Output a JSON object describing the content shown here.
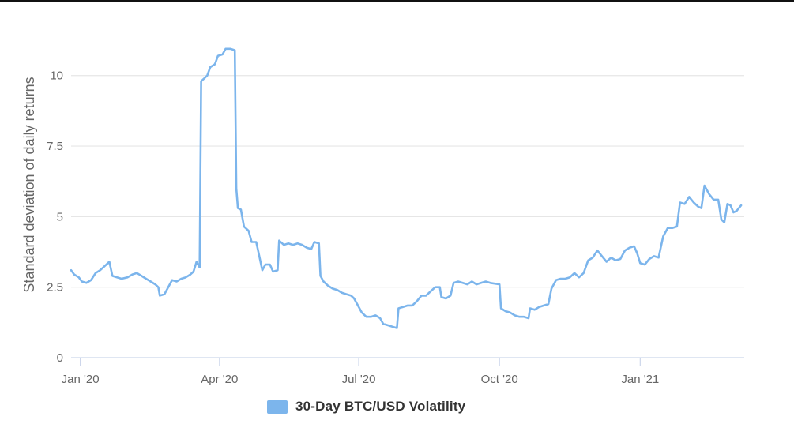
{
  "colors": {
    "series": "#7cb5ec",
    "grid": "#e6e6e6",
    "text": "#666666",
    "legend_text": "#333333"
  },
  "chart_data": {
    "type": "line",
    "title": "",
    "xlabel": "",
    "ylabel": "Standard deviation of daily returns",
    "ylim": [
      0,
      11
    ],
    "xlim": [
      "2019-12-26",
      "2021-03-10"
    ],
    "y_ticks": [
      0,
      2.5,
      5,
      7.5,
      10
    ],
    "y_tick_labels": [
      "0",
      "2.5",
      "5",
      "7.5",
      "10"
    ],
    "x_ticks": [
      "2020-01-01",
      "2020-04-01",
      "2020-07-01",
      "2020-10-01",
      "2021-01-01"
    ],
    "x_tick_labels": [
      "Jan '20",
      "Apr '20",
      "Jul '20",
      "Oct '20",
      "Jan '21"
    ],
    "grid": "horizontal",
    "legend_position": "bottom-center",
    "series": [
      {
        "name": "30-Day BTC/USD Volatility",
        "color": "#7cb5ec",
        "points": [
          [
            "2019-12-26",
            3.1
          ],
          [
            "2019-12-28",
            2.95
          ],
          [
            "2019-12-31",
            2.85
          ],
          [
            "2020-01-02",
            2.7
          ],
          [
            "2020-01-05",
            2.65
          ],
          [
            "2020-01-08",
            2.75
          ],
          [
            "2020-01-11",
            3.0
          ],
          [
            "2020-01-14",
            3.1
          ],
          [
            "2020-01-17",
            3.25
          ],
          [
            "2020-01-20",
            3.4
          ],
          [
            "2020-01-22",
            2.9
          ],
          [
            "2020-01-25",
            2.85
          ],
          [
            "2020-01-28",
            2.8
          ],
          [
            "2020-02-01",
            2.85
          ],
          [
            "2020-02-04",
            2.95
          ],
          [
            "2020-02-07",
            3.0
          ],
          [
            "2020-02-10",
            2.9
          ],
          [
            "2020-02-13",
            2.8
          ],
          [
            "2020-02-16",
            2.7
          ],
          [
            "2020-02-19",
            2.6
          ],
          [
            "2020-02-21",
            2.5
          ],
          [
            "2020-02-22",
            2.2
          ],
          [
            "2020-02-25",
            2.25
          ],
          [
            "2020-02-27",
            2.45
          ],
          [
            "2020-03-01",
            2.75
          ],
          [
            "2020-03-04",
            2.7
          ],
          [
            "2020-03-07",
            2.8
          ],
          [
            "2020-03-10",
            2.85
          ],
          [
            "2020-03-13",
            2.95
          ],
          [
            "2020-03-15",
            3.05
          ],
          [
            "2020-03-17",
            3.4
          ],
          [
            "2020-03-19",
            3.2
          ],
          [
            "2020-03-20",
            9.8
          ],
          [
            "2020-03-22",
            9.9
          ],
          [
            "2020-03-24",
            10.0
          ],
          [
            "2020-03-26",
            10.3
          ],
          [
            "2020-03-29",
            10.4
          ],
          [
            "2020-03-31",
            10.7
          ],
          [
            "2020-04-03",
            10.75
          ],
          [
            "2020-04-05",
            10.95
          ],
          [
            "2020-04-08",
            10.95
          ],
          [
            "2020-04-11",
            10.9
          ],
          [
            "2020-04-12",
            6.0
          ],
          [
            "2020-04-13",
            5.3
          ],
          [
            "2020-04-15",
            5.25
          ],
          [
            "2020-04-17",
            4.65
          ],
          [
            "2020-04-20",
            4.5
          ],
          [
            "2020-04-22",
            4.1
          ],
          [
            "2020-04-25",
            4.1
          ],
          [
            "2020-04-27",
            3.6
          ],
          [
            "2020-04-29",
            3.1
          ],
          [
            "2020-05-01",
            3.3
          ],
          [
            "2020-05-04",
            3.3
          ],
          [
            "2020-05-06",
            3.05
          ],
          [
            "2020-05-09",
            3.1
          ],
          [
            "2020-05-10",
            4.15
          ],
          [
            "2020-05-13",
            4.0
          ],
          [
            "2020-05-16",
            4.05
          ],
          [
            "2020-05-19",
            4.0
          ],
          [
            "2020-05-22",
            4.05
          ],
          [
            "2020-05-25",
            4.0
          ],
          [
            "2020-05-28",
            3.9
          ],
          [
            "2020-05-31",
            3.85
          ],
          [
            "2020-06-02",
            4.1
          ],
          [
            "2020-06-05",
            4.05
          ],
          [
            "2020-06-06",
            2.9
          ],
          [
            "2020-06-08",
            2.7
          ],
          [
            "2020-06-11",
            2.55
          ],
          [
            "2020-06-14",
            2.45
          ],
          [
            "2020-06-17",
            2.4
          ],
          [
            "2020-06-20",
            2.3
          ],
          [
            "2020-06-23",
            2.25
          ],
          [
            "2020-06-26",
            2.2
          ],
          [
            "2020-06-28",
            2.1
          ],
          [
            "2020-07-03",
            1.6
          ],
          [
            "2020-07-06",
            1.45
          ],
          [
            "2020-07-09",
            1.45
          ],
          [
            "2020-07-12",
            1.5
          ],
          [
            "2020-07-15",
            1.4
          ],
          [
            "2020-07-17",
            1.2
          ],
          [
            "2020-07-20",
            1.15
          ],
          [
            "2020-07-23",
            1.1
          ],
          [
            "2020-07-26",
            1.05
          ],
          [
            "2020-07-27",
            1.75
          ],
          [
            "2020-07-30",
            1.8
          ],
          [
            "2020-08-02",
            1.85
          ],
          [
            "2020-08-05",
            1.85
          ],
          [
            "2020-08-08",
            2.0
          ],
          [
            "2020-08-11",
            2.2
          ],
          [
            "2020-08-14",
            2.2
          ],
          [
            "2020-08-17",
            2.35
          ],
          [
            "2020-08-20",
            2.5
          ],
          [
            "2020-08-23",
            2.5
          ],
          [
            "2020-08-24",
            2.15
          ],
          [
            "2020-08-27",
            2.1
          ],
          [
            "2020-08-30",
            2.2
          ],
          [
            "2020-09-01",
            2.65
          ],
          [
            "2020-09-04",
            2.7
          ],
          [
            "2020-09-07",
            2.65
          ],
          [
            "2020-09-10",
            2.6
          ],
          [
            "2020-09-13",
            2.7
          ],
          [
            "2020-09-16",
            2.6
          ],
          [
            "2020-09-19",
            2.65
          ],
          [
            "2020-09-22",
            2.7
          ],
          [
            "2020-09-25",
            2.65
          ],
          [
            "2020-10-01",
            2.6
          ],
          [
            "2020-10-02",
            1.75
          ],
          [
            "2020-10-05",
            1.65
          ],
          [
            "2020-10-08",
            1.6
          ],
          [
            "2020-10-11",
            1.5
          ],
          [
            "2020-10-14",
            1.45
          ],
          [
            "2020-10-17",
            1.45
          ],
          [
            "2020-10-20",
            1.4
          ],
          [
            "2020-10-21",
            1.75
          ],
          [
            "2020-10-24",
            1.7
          ],
          [
            "2020-10-27",
            1.8
          ],
          [
            "2020-10-30",
            1.85
          ],
          [
            "2020-11-02",
            1.9
          ],
          [
            "2020-11-04",
            2.45
          ],
          [
            "2020-11-07",
            2.75
          ],
          [
            "2020-11-10",
            2.8
          ],
          [
            "2020-11-13",
            2.8
          ],
          [
            "2020-11-16",
            2.85
          ],
          [
            "2020-11-19",
            3.0
          ],
          [
            "2020-11-22",
            2.85
          ],
          [
            "2020-11-25",
            3.0
          ],
          [
            "2020-11-28",
            3.45
          ],
          [
            "2020-12-01",
            3.55
          ],
          [
            "2020-12-04",
            3.8
          ],
          [
            "2020-12-07",
            3.6
          ],
          [
            "2020-12-10",
            3.4
          ],
          [
            "2020-12-13",
            3.55
          ],
          [
            "2020-12-16",
            3.45
          ],
          [
            "2020-12-19",
            3.5
          ],
          [
            "2020-12-22",
            3.8
          ],
          [
            "2020-12-25",
            3.9
          ],
          [
            "2020-12-28",
            3.95
          ],
          [
            "2020-12-30",
            3.7
          ],
          [
            "2021-01-01",
            3.35
          ],
          [
            "2021-01-04",
            3.3
          ],
          [
            "2021-01-07",
            3.5
          ],
          [
            "2021-01-10",
            3.6
          ],
          [
            "2021-01-13",
            3.55
          ],
          [
            "2021-01-16",
            4.3
          ],
          [
            "2021-01-19",
            4.6
          ],
          [
            "2021-01-22",
            4.6
          ],
          [
            "2021-01-25",
            4.65
          ],
          [
            "2021-01-27",
            5.5
          ],
          [
            "2021-01-30",
            5.45
          ],
          [
            "2021-02-02",
            5.7
          ],
          [
            "2021-02-05",
            5.5
          ],
          [
            "2021-02-08",
            5.35
          ],
          [
            "2021-02-10",
            5.3
          ],
          [
            "2021-02-12",
            6.1
          ],
          [
            "2021-02-15",
            5.8
          ],
          [
            "2021-02-18",
            5.6
          ],
          [
            "2021-02-21",
            5.6
          ],
          [
            "2021-02-23",
            4.9
          ],
          [
            "2021-02-25",
            4.8
          ],
          [
            "2021-02-27",
            5.45
          ],
          [
            "2021-03-01",
            5.4
          ],
          [
            "2021-03-03",
            5.15
          ],
          [
            "2021-03-05",
            5.2
          ],
          [
            "2021-03-08",
            5.4
          ]
        ]
      }
    ]
  }
}
